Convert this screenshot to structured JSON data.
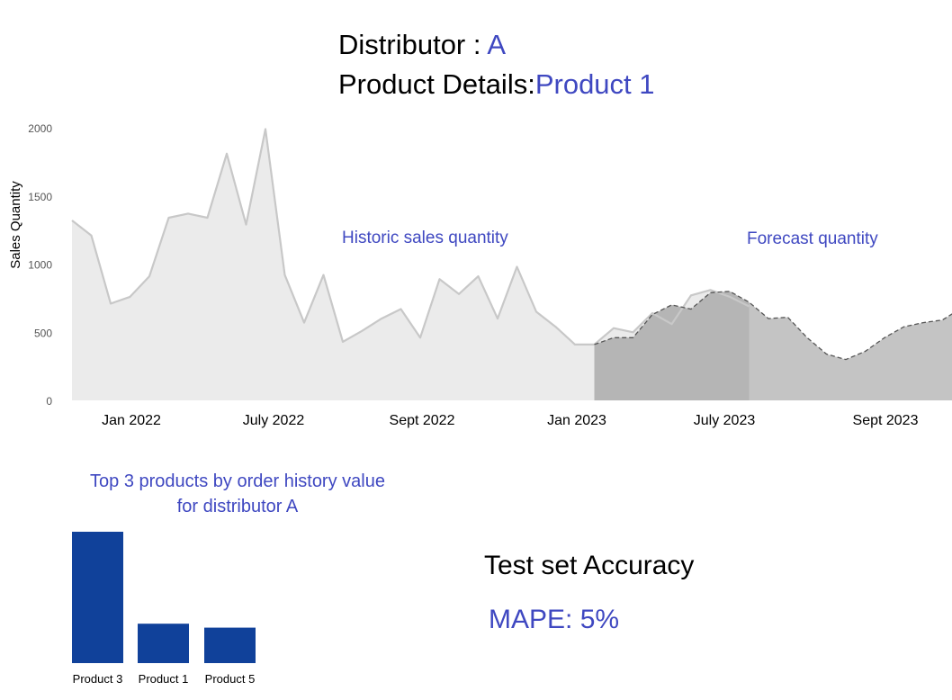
{
  "header": {
    "distributor_label": "Distributor : ",
    "distributor_value": "A",
    "product_label": "Product Details:",
    "product_value": "Product 1"
  },
  "annotations": {
    "historic": "Historic sales quantity",
    "forecast": "Forecast quantity"
  },
  "chart_data": [
    {
      "type": "area",
      "ylabel": "Sales Quantity",
      "xlabel": "",
      "ylim": [
        0,
        2000
      ],
      "yticks": [
        0,
        500,
        1000,
        1500,
        2000
      ],
      "xtick_labels": [
        "Jan 2022",
        "July 2022",
        "Sept 2022",
        "Jan 2023",
        "July 2023",
        "Sept 2023"
      ],
      "grid": false,
      "series": [
        {
          "name": "Historic sales quantity",
          "role": "historic",
          "values": [
            1320,
            1210,
            710,
            760,
            910,
            1340,
            1370,
            1340,
            1810,
            1290,
            1990,
            920,
            570,
            920,
            430,
            510,
            600,
            670,
            460,
            890,
            780,
            910,
            600,
            980,
            650,
            540,
            410,
            410,
            530,
            500,
            640,
            560,
            770,
            810,
            760,
            690
          ]
        },
        {
          "name": "Forecast quantity",
          "role": "forecast",
          "start_index": 27,
          "test_end_index": 35,
          "values": [
            410,
            460,
            460,
            630,
            700,
            670,
            790,
            800,
            720,
            600,
            610,
            460,
            340,
            300,
            360,
            460,
            540,
            570,
            590,
            680
          ]
        }
      ]
    },
    {
      "type": "bar",
      "title_lines": [
        "Top 3 products by order history value",
        "for distributor A"
      ],
      "categories": [
        "Product 3",
        "Product 1",
        "Product 5"
      ],
      "values": [
        100,
        30,
        27
      ]
    }
  ],
  "accuracy": {
    "title": "Test set Accuracy",
    "mape": "MAPE: 5%"
  },
  "colors": {
    "accent": "#3f48c1",
    "historic_fill": "#ebebeb",
    "historic_line": "#c8c8c8",
    "test_fill": "#b5b5b5",
    "future_fill": "#c4c4c4",
    "bar": "#10419a"
  }
}
